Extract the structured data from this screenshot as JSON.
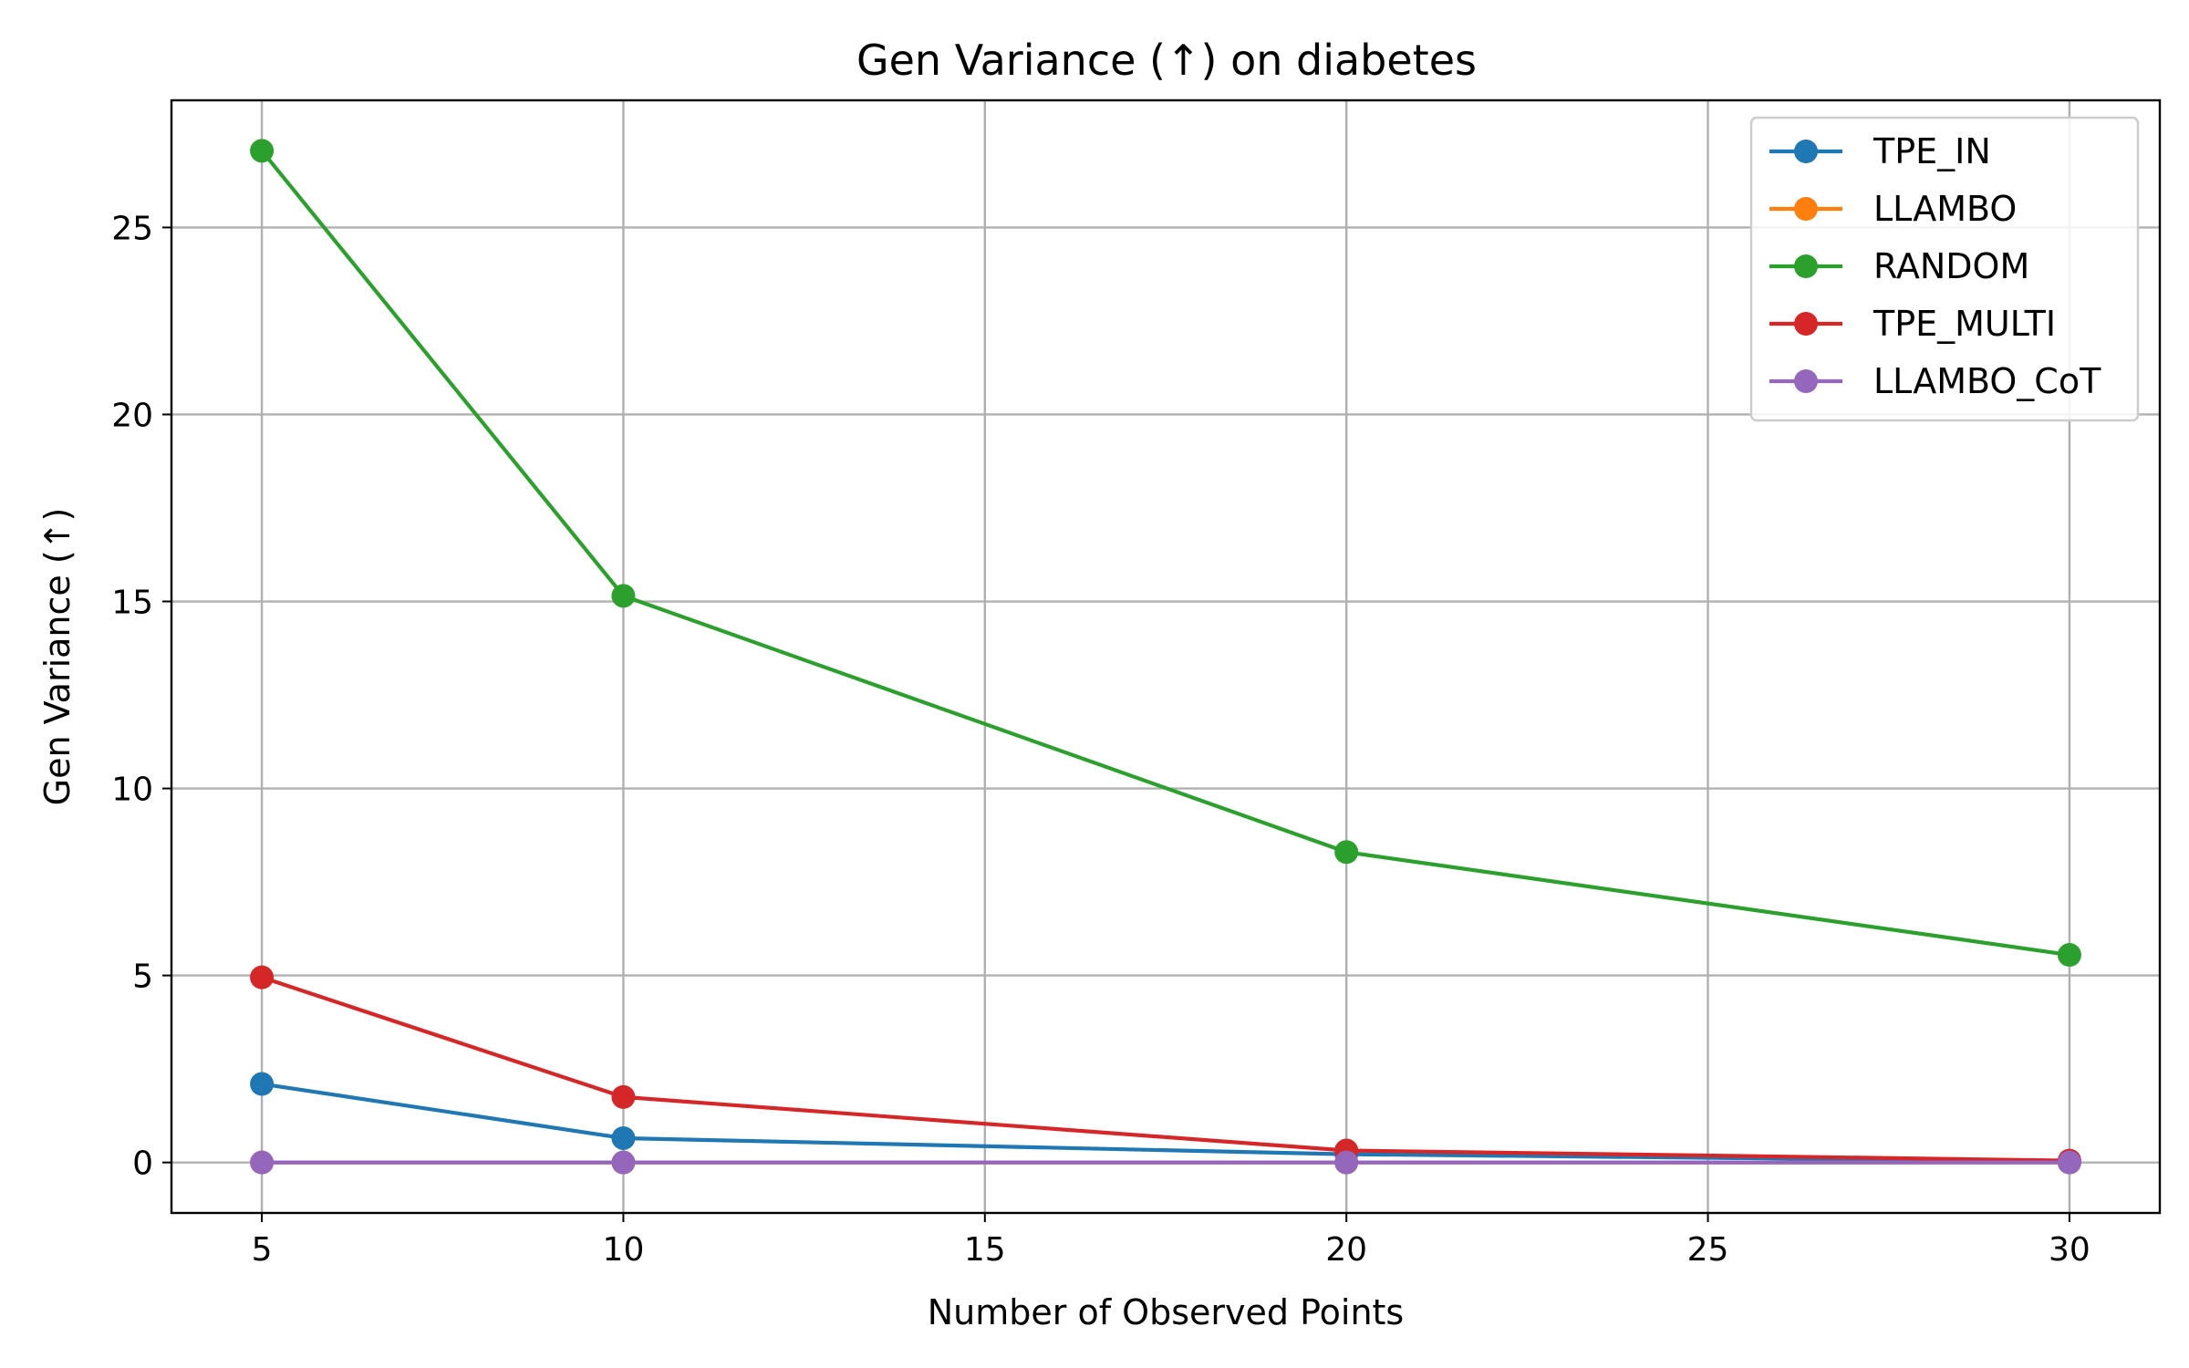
{
  "chart_data": {
    "type": "line",
    "title": "Gen Variance (↑) on diabetes",
    "xlabel": "Number of Observed Points",
    "ylabel": "Gen Variance (↑)",
    "x": [
      5,
      10,
      20,
      30
    ],
    "xlim": [
      3.75,
      31.25
    ],
    "ylim": [
      -1.35,
      28.4
    ],
    "xticks": [
      "5",
      "10",
      "15",
      "20",
      "25",
      "30"
    ],
    "xtick_values": [
      5,
      10,
      15,
      20,
      25,
      30
    ],
    "yticks": [
      "0",
      "5",
      "10",
      "15",
      "20",
      "25"
    ],
    "ytick_values": [
      0,
      5,
      10,
      15,
      20,
      25
    ],
    "grid": true,
    "legend_position": "top-right",
    "series": [
      {
        "name": "TPE_IN",
        "color": "#1f77b4",
        "values": [
          2.1,
          0.65,
          0.22,
          0.03
        ]
      },
      {
        "name": "LLAMBO",
        "color": "#ff7f0e",
        "values": [
          0,
          0,
          0,
          0
        ]
      },
      {
        "name": "RANDOM",
        "color": "#2ca02c",
        "values": [
          27.05,
          15.15,
          8.3,
          5.55
        ]
      },
      {
        "name": "TPE_MULTI",
        "color": "#d62728",
        "values": [
          4.95,
          1.75,
          0.32,
          0.05
        ]
      },
      {
        "name": "LLAMBO_CoT",
        "color": "#9467bd",
        "values": [
          0,
          0,
          0,
          0
        ]
      }
    ]
  }
}
